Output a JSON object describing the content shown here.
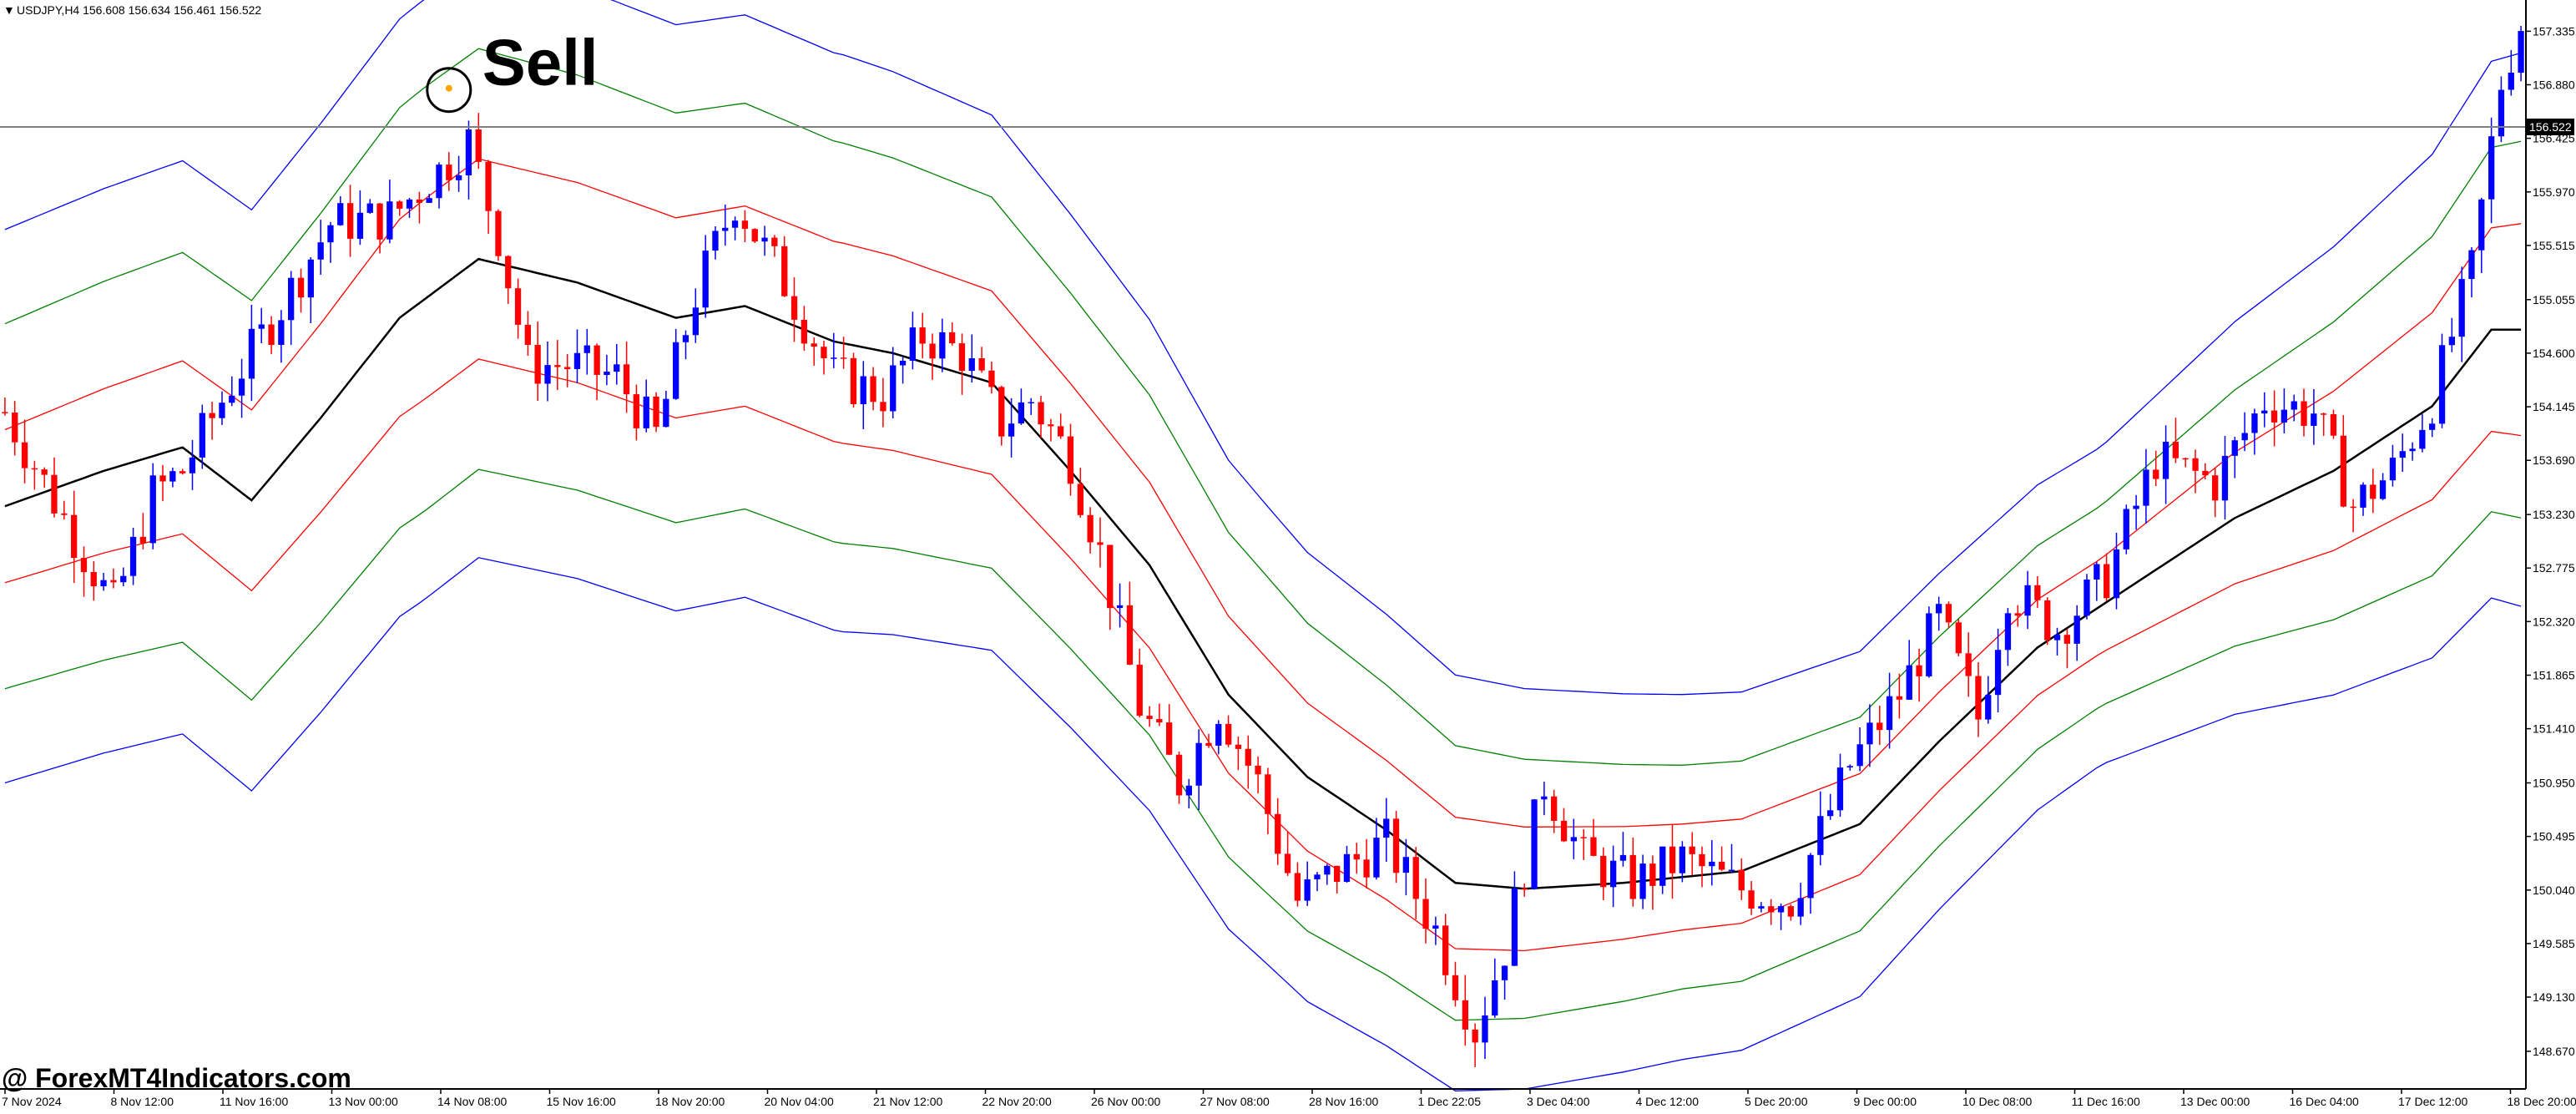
{
  "header": {
    "arrow": "▼",
    "symbol_info": "USDJPY,H4  156.608 156.634 156.461 156.522"
  },
  "annotation": {
    "signal": "Sell"
  },
  "watermark": "@ ForexMT4Indicators.com",
  "price_marker": "156.522",
  "colors": {
    "bull": "#0000ff",
    "bear": "#ff0000",
    "mid": "#000000",
    "band1": "#ff0000",
    "band2": "#008000",
    "band3": "#0000ff",
    "signal_dot": "#ffa500",
    "grid_axis": "#000000",
    "background": "#ffffff"
  },
  "chart_data": {
    "type": "candlestick",
    "symbol": "USDJPY",
    "timeframe": "H4",
    "ylim": [
      148.35,
      157.6
    ],
    "y_ticks": [
      "157.335",
      "156.880",
      "156.425",
      "155.970",
      "155.515",
      "155.055",
      "154.600",
      "154.145",
      "153.690",
      "153.230",
      "152.775",
      "152.320",
      "151.865",
      "151.410",
      "150.950",
      "150.495",
      "150.040",
      "149.585",
      "149.130",
      "148.670"
    ],
    "x_ticks": [
      "7 Nov 2024",
      "8 Nov 12:00",
      "11 Nov 16:00",
      "13 Nov 00:00",
      "14 Nov 08:00",
      "15 Nov 16:00",
      "18 Nov 20:00",
      "20 Nov 04:00",
      "21 Nov 12:00",
      "22 Nov 20:00",
      "26 Nov 00:00",
      "27 Nov 08:00",
      "28 Nov 16:00",
      "1 Dec 22:05",
      "3 Dec 04:00",
      "4 Dec 12:00",
      "5 Dec 20:00",
      "9 Dec 00:00",
      "10 Dec 08:00",
      "11 Dec 16:00",
      "13 Dec 00:00",
      "16 Dec 04:00",
      "17 Dec 12:00",
      "18 Dec 20:00"
    ],
    "current_price": 156.522,
    "sell_signal_price": 156.85,
    "sell_signal_index": 45,
    "series": [
      {
        "name": "close",
        "anchors": [
          [
            0,
            154.1
          ],
          [
            6,
            153.2
          ],
          [
            11,
            152.45
          ],
          [
            15,
            153.4
          ],
          [
            18,
            153.6
          ],
          [
            23,
            154.35
          ],
          [
            28,
            155.0
          ],
          [
            33,
            155.7
          ],
          [
            39,
            155.75
          ],
          [
            44,
            156.15
          ],
          [
            47,
            156.4
          ],
          [
            50,
            155.6
          ],
          [
            53,
            154.5
          ],
          [
            57,
            154.5
          ],
          [
            62,
            154.4
          ],
          [
            66,
            153.9
          ],
          [
            70,
            155.1
          ],
          [
            74,
            155.9
          ],
          [
            79,
            155.2
          ],
          [
            84,
            154.4
          ],
          [
            89,
            154.25
          ],
          [
            93,
            154.75
          ],
          [
            97,
            154.6
          ],
          [
            101,
            154.0
          ],
          [
            104,
            154.2
          ],
          [
            108,
            153.7
          ],
          [
            111,
            152.9
          ],
          [
            115,
            151.6
          ],
          [
            119,
            150.95
          ],
          [
            123,
            151.6
          ],
          [
            127,
            150.95
          ],
          [
            131,
            149.95
          ],
          [
            135,
            150.2
          ],
          [
            140,
            150.45
          ],
          [
            145,
            149.7
          ],
          [
            149,
            148.85
          ],
          [
            152,
            149.55
          ],
          [
            156,
            150.95
          ],
          [
            160,
            150.3
          ],
          [
            165,
            150.1
          ],
          [
            170,
            150.3
          ],
          [
            176,
            150.05
          ],
          [
            181,
            149.95
          ],
          [
            187,
            151.1
          ],
          [
            192,
            151.7
          ],
          [
            196,
            152.35
          ],
          [
            200,
            151.5
          ],
          [
            203,
            152.6
          ],
          [
            208,
            152.25
          ],
          [
            213,
            152.7
          ],
          [
            218,
            153.7
          ],
          [
            224,
            153.5
          ],
          [
            229,
            154.2
          ],
          [
            234,
            154.1
          ],
          [
            238,
            153.3
          ],
          [
            242,
            153.6
          ],
          [
            246,
            154.2
          ],
          [
            250,
            155.3
          ],
          [
            253,
            156.9
          ],
          [
            255,
            157.4
          ]
        ]
      },
      {
        "name": "mid",
        "anchors": [
          [
            0,
            153.3
          ],
          [
            10,
            153.6
          ],
          [
            18,
            153.8
          ],
          [
            25,
            153.35
          ],
          [
            32,
            154.05
          ],
          [
            40,
            154.9
          ],
          [
            48,
            155.4
          ],
          [
            58,
            155.2
          ],
          [
            68,
            154.9
          ],
          [
            75,
            155.0
          ],
          [
            84,
            154.7
          ],
          [
            90,
            154.6
          ],
          [
            100,
            154.35
          ],
          [
            108,
            153.6
          ],
          [
            116,
            152.8
          ],
          [
            124,
            151.7
          ],
          [
            132,
            151.0
          ],
          [
            140,
            150.55
          ],
          [
            147,
            150.1
          ],
          [
            154,
            150.05
          ],
          [
            164,
            150.1
          ],
          [
            176,
            150.2
          ],
          [
            188,
            150.6
          ],
          [
            196,
            151.3
          ],
          [
            206,
            152.1
          ],
          [
            216,
            152.65
          ],
          [
            226,
            153.2
          ],
          [
            236,
            153.6
          ],
          [
            246,
            154.15
          ],
          [
            252,
            154.8
          ]
        ]
      },
      {
        "name": "band_inner",
        "offsets": [
          0.65,
          0.85,
          0.85,
          0.65,
          0.45,
          0.4,
          0.9
        ]
      },
      {
        "name": "band_middle",
        "offsets": [
          1.55,
          1.8,
          1.7,
          1.35,
          0.95,
          0.85,
          1.6
        ]
      },
      {
        "name": "band_outer",
        "offsets": [
          2.35,
          2.55,
          2.45,
          1.95,
          1.55,
          1.35,
          2.35
        ]
      }
    ],
    "candle_count": 256
  }
}
